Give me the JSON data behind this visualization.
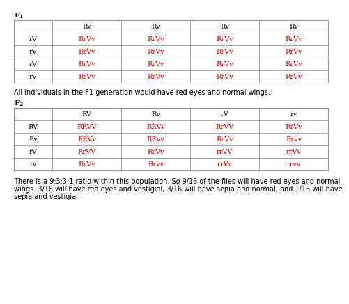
{
  "f1_header_row": [
    "",
    "Rv",
    "Rv",
    "Rv",
    "Rv"
  ],
  "f1_rows": [
    [
      "rV",
      "RrVv",
      "RrVv",
      "RrVv",
      "RrVv"
    ],
    [
      "rV",
      "RrVv",
      "RrVv",
      "RrVv",
      "RrVv"
    ],
    [
      "rV",
      "RrVv",
      "RrVv",
      "RrVv",
      "RrVv"
    ],
    [
      "rV",
      "RrVv",
      "RrVv",
      "RrVv",
      "RrVv"
    ]
  ],
  "f2_header_row": [
    "",
    "RV",
    "Rv",
    "rV",
    "rv"
  ],
  "f2_rows": [
    [
      "RV",
      "RRVV",
      "RRVv",
      "RrVV",
      "RrVv"
    ],
    [
      "Rv",
      "RRVv",
      "RRvv",
      "RrVv",
      "Rrvv"
    ],
    [
      "rV",
      "RrVV",
      "RrVv",
      "rrVV",
      "rrVv"
    ],
    [
      "rv",
      "RrVv",
      "Rrvv",
      "rrVv",
      "rrvv"
    ]
  ],
  "f1_note": "All individuals in the F1 generation would have red eyes and normal wings.",
  "f2_note_line1": "There is a 9:3:3:1 ratio within this population. So 9/16 of the flies will have red eyes and normal",
  "f2_note_line2": "wings. 3/16 will have red eyes and vestigial, 3/16 will have sepia and normal, and 1/16 will have",
  "f2_note_line3": "sepia and vestigial.",
  "red_color": "#cc0000",
  "black_color": "#000000",
  "bg_color": "#ffffff",
  "border_color": "#999999"
}
